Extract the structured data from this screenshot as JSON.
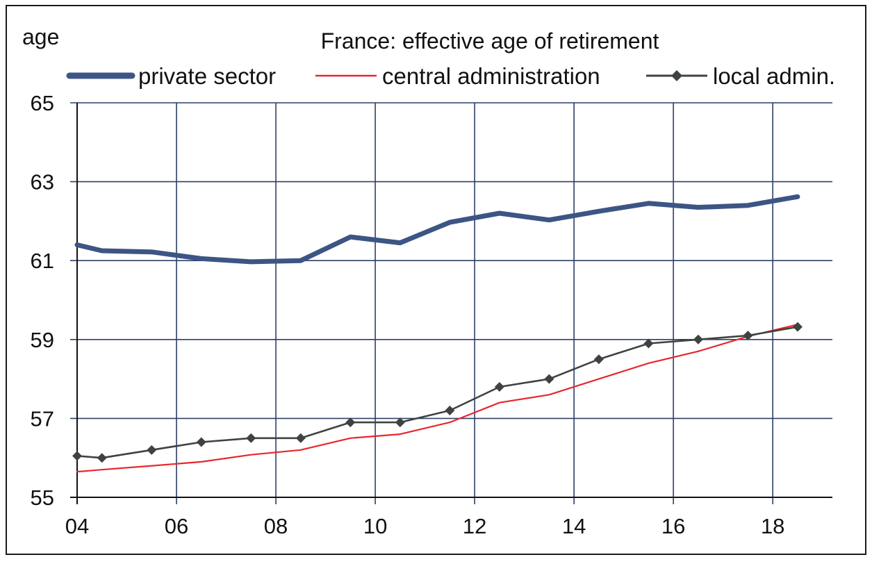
{
  "chart_data": {
    "type": "line",
    "title": "France: effective age of retirement",
    "ylabel": "age",
    "xlabel": "",
    "x_ticks": [
      "04",
      "06",
      "08",
      "10",
      "12",
      "14",
      "16",
      "18"
    ],
    "y_ticks": [
      "55",
      "57",
      "59",
      "61",
      "63",
      "65"
    ],
    "xlim": [
      2004,
      2019.2
    ],
    "ylim": [
      55,
      65
    ],
    "grid": true,
    "legend_position": "top",
    "series": [
      {
        "name": "private sector",
        "color": "#3c5584",
        "style": "thick",
        "marker": "none",
        "points": [
          [
            2004,
            61.4
          ],
          [
            2004.5,
            61.25
          ],
          [
            2005.5,
            61.22
          ],
          [
            2006.5,
            61.05
          ],
          [
            2007.5,
            60.97
          ],
          [
            2008.5,
            61.0
          ],
          [
            2009.5,
            61.6
          ],
          [
            2010.5,
            61.45
          ],
          [
            2011.5,
            61.97
          ],
          [
            2012.5,
            62.2
          ],
          [
            2013.5,
            62.03
          ],
          [
            2014.5,
            62.25
          ],
          [
            2015.5,
            62.45
          ],
          [
            2016.5,
            62.35
          ],
          [
            2017.5,
            62.4
          ],
          [
            2018.5,
            62.62
          ]
        ]
      },
      {
        "name": "central administration",
        "color": "#e8262d",
        "style": "thin",
        "marker": "none",
        "points": [
          [
            2004,
            55.65
          ],
          [
            2004.5,
            55.7
          ],
          [
            2005.5,
            55.8
          ],
          [
            2006.5,
            55.9
          ],
          [
            2007.5,
            56.08
          ],
          [
            2008.5,
            56.2
          ],
          [
            2009.5,
            56.5
          ],
          [
            2010.5,
            56.6
          ],
          [
            2011.5,
            56.9
          ],
          [
            2012.5,
            57.4
          ],
          [
            2013.5,
            57.6
          ],
          [
            2014.5,
            58.0
          ],
          [
            2015.5,
            58.4
          ],
          [
            2016.5,
            58.7
          ],
          [
            2017.5,
            59.08
          ],
          [
            2018.5,
            59.38
          ]
        ]
      },
      {
        "name": "local admin.",
        "color": "#3f4340",
        "style": "medium",
        "marker": "diamond",
        "points": [
          [
            2004,
            56.05
          ],
          [
            2004.5,
            56.0
          ],
          [
            2005.5,
            56.2
          ],
          [
            2006.5,
            56.4
          ],
          [
            2007.5,
            56.5
          ],
          [
            2008.5,
            56.5
          ],
          [
            2009.5,
            56.9
          ],
          [
            2010.5,
            56.9
          ],
          [
            2011.5,
            57.2
          ],
          [
            2012.5,
            57.8
          ],
          [
            2013.5,
            58.0
          ],
          [
            2014.5,
            58.5
          ],
          [
            2015.5,
            58.9
          ],
          [
            2016.5,
            59.0
          ],
          [
            2017.5,
            59.1
          ],
          [
            2018.5,
            59.32
          ]
        ]
      }
    ]
  }
}
